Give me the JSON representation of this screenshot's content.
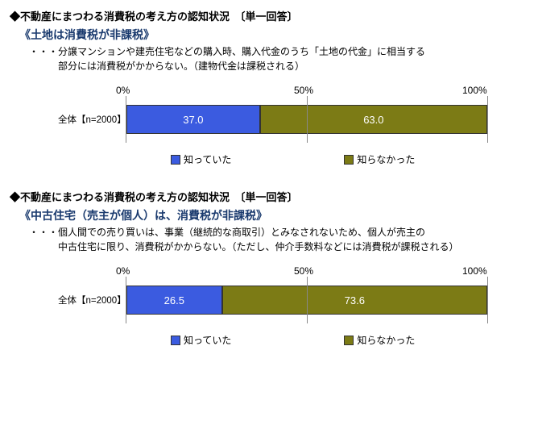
{
  "sections": [
    {
      "heading": "◆不動産にまつわる消費税の考え方の認知状況　〔単一回答〕",
      "subheading": "《土地は消費税が非課税》",
      "desc_line1": "・・・分譲マンションや建売住宅などの購入時、購入代金のうち「土地の代金」に相当する",
      "desc_line2": "　　　部分には消費税がかからない。（建物代金は課税される）",
      "row_label": "全体【n=2000】",
      "segments": [
        {
          "value": 37.0,
          "label": "37.0",
          "color": "#3b5be0"
        },
        {
          "value": 63.0,
          "label": "63.0",
          "color": "#7c7b15"
        }
      ]
    },
    {
      "heading": "◆不動産にまつわる消費税の考え方の認知状況　〔単一回答〕",
      "subheading": "《中古住宅（売主が個人）は、消費税が非課税》",
      "desc_line1": "・・・個人間での売り買いは、事業（継続的な商取引）とみなされないため、個人が売主の",
      "desc_line2": "　　　中古住宅に限り、消費税がかからない。（ただし、仲介手数料などには消費税が課税される）",
      "row_label": "全体【n=2000】",
      "segments": [
        {
          "value": 26.5,
          "label": "26.5",
          "color": "#3b5be0"
        },
        {
          "value": 73.6,
          "label": "73.6",
          "color": "#7c7b15"
        }
      ]
    }
  ],
  "axis": {
    "ticks": [
      "0%",
      "50%",
      "100%"
    ]
  },
  "legend": [
    {
      "label": "知っていた",
      "color": "#3b5be0"
    },
    {
      "label": "知らなかった",
      "color": "#7c7b15"
    }
  ],
  "colors": {
    "background": "#ffffff",
    "text": "#000000",
    "subheading": "#1a3a6e"
  }
}
